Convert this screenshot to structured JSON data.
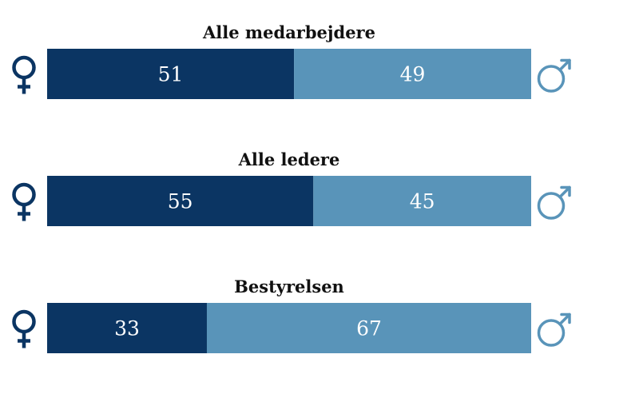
{
  "chart_data": {
    "type": "bar",
    "stacked": true,
    "orientation": "horizontal",
    "categories": [
      "Alle medarbejdere",
      "Alle ledere",
      "Bestyrelsen"
    ],
    "series": [
      {
        "values": [
          51,
          55,
          33
        ],
        "color": "#0b3563",
        "icon": "female-symbol-icon"
      },
      {
        "values": [
          49,
          45,
          67
        ],
        "color": "#5994b9",
        "icon": "male-symbol-icon"
      }
    ],
    "xlim": [
      0,
      100
    ]
  }
}
